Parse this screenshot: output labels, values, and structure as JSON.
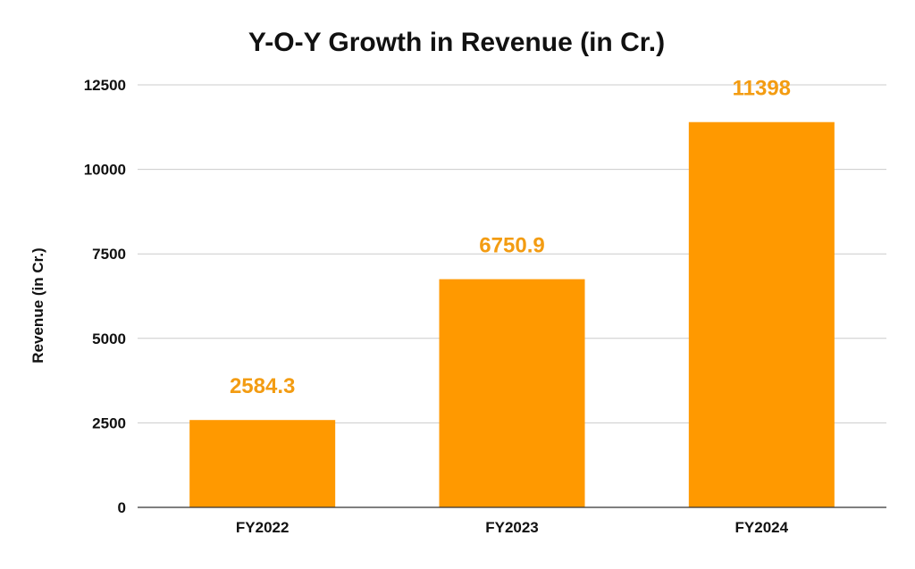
{
  "chart_data": {
    "type": "bar",
    "title": "Y-O-Y Growth in Revenue (in Cr.)",
    "xlabel": "",
    "ylabel": "Revenue (in Cr.)",
    "categories": [
      "FY2022",
      "FY2023",
      "FY2024"
    ],
    "values": [
      2584.3,
      6750.9,
      11398
    ],
    "data_labels": [
      "2584.3",
      "6750.9",
      "11398"
    ],
    "ylim": [
      0,
      12500
    ],
    "yticks": [
      0,
      2500,
      5000,
      7500,
      10000,
      12500
    ],
    "ytick_labels": [
      "0",
      "2500",
      "5000",
      "7500",
      "10000",
      "12500"
    ],
    "grid": true,
    "legend": "none",
    "colors": {
      "bar": "#ff9900",
      "data_label": "#f39c12",
      "grid": "#cccccc",
      "axis": "#333333",
      "text": "#111111"
    }
  }
}
